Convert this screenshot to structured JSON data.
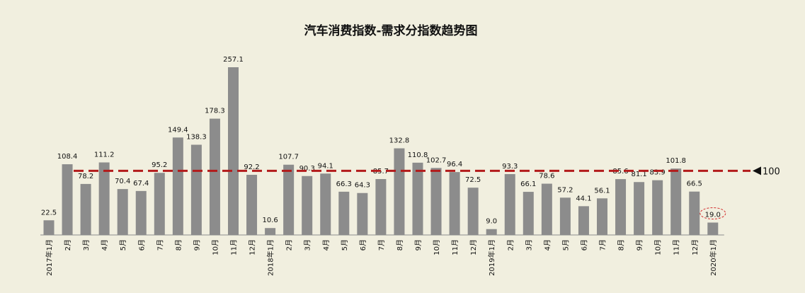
{
  "chart_data": {
    "type": "bar",
    "title": "汽车消费指数-需求分指数趋势图",
    "categories": [
      "2017年1月",
      "2月",
      "3月",
      "4月",
      "5月",
      "6月",
      "7月",
      "8月",
      "9月",
      "10月",
      "11月",
      "12月",
      "2018年1月",
      "2月",
      "3月",
      "4月",
      "5月",
      "6月",
      "7月",
      "8月",
      "9月",
      "10月",
      "11月",
      "12月",
      "2019年1月",
      "2月",
      "3月",
      "4月",
      "5月",
      "6月",
      "7月",
      "8月",
      "9月",
      "10月",
      "11月",
      "12月",
      "2020年1月"
    ],
    "values": [
      22.5,
      108.4,
      78.2,
      111.2,
      70.4,
      67.4,
      95.2,
      149.4,
      138.3,
      178.3,
      257.1,
      92.2,
      10.6,
      107.7,
      90.3,
      94.1,
      66.3,
      64.3,
      85.7,
      132.8,
      110.8,
      102.7,
      96.4,
      72.5,
      9.0,
      93.3,
      66.1,
      78.6,
      57.2,
      44.1,
      56.1,
      85.6,
      81.1,
      83.9,
      101.8,
      66.5,
      19.0
    ],
    "value_labels": [
      "22.5",
      "108.4",
      "78.2",
      "111.2",
      "70.4",
      "67.4",
      "95.2",
      "149.4",
      "138.3",
      "178.3",
      "257.1",
      "92.2",
      "10.6",
      "107.7",
      "90.3",
      "94.1",
      "66.3",
      "64.3",
      "85.7",
      "132.8",
      "110.8",
      "102.7",
      "96.4",
      "72.5",
      "9.0",
      "93.3",
      "66.1",
      "78.6",
      "57.2",
      "44.1",
      "56.1",
      "85.6",
      "81.1",
      "83.9",
      "101.8",
      "66.5",
      "19.0"
    ],
    "reference_line": {
      "value": 100,
      "label": "100",
      "color": "#b31b1b",
      "style": "dashed"
    },
    "highlight": {
      "index": 36,
      "marker": "dashed-ellipse",
      "color": "#d32f2f"
    },
    "bar_color": "#8c8c8c",
    "ylim": [
      0,
      260
    ],
    "xlabel": "",
    "ylabel": "",
    "grid": false,
    "legend": "none"
  }
}
